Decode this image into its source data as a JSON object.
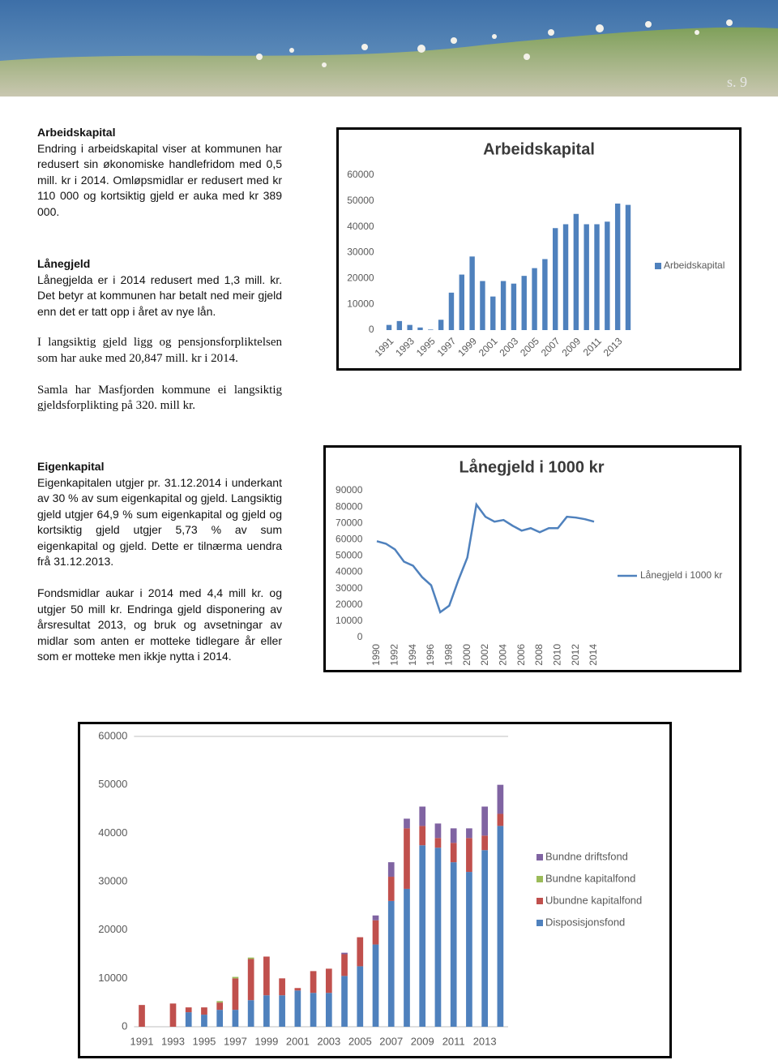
{
  "page_number": "s. 9",
  "sections": [
    {
      "heading": "Arbeidskapital",
      "paragraphs": [
        "Endring i arbeidskapital viser at kommunen har redusert sin økonomiske handlefridom med 0,5 mill. kr i 2014. Omløpsmidlar er redusert med kr 110 000 og kortsiktig gjeld er auka med kr 389 000."
      ]
    },
    {
      "heading": "Lånegjeld",
      "paragraphs": [
        "Lånegjelda er i 2014 redusert med 1,3 mill. kr. Det betyr at kommunen har betalt ned meir gjeld enn det er tatt opp i året av nye lån."
      ]
    },
    {
      "paragraphs": [
        "I langsiktig gjeld ligg og pensjonsforpliktelsen som har auke med 20,847 mill. kr i 2014.",
        "Samla har Masfjorden kommune ei langsiktig gjeldsforplikting på 320. mill kr."
      ]
    },
    {
      "heading": "Eigenkapital",
      "paragraphs": [
        "Eigenkapitalen utgjer pr. 31.12.2014 i underkant av 30 % av sum eigenkapital og gjeld. Langsiktig gjeld utgjer 64,9 % sum eigenkapital og gjeld og kortsiktig gjeld utgjer 5,73 % av sum eigenkapital og gjeld. Dette er tilnærma uendra frå 31.12.2013.",
        "Fondsmidlar aukar i 2014 med 4,4 mill kr. og utgjer 50 mill kr. Endringa gjeld disponering av årsresultat 2013, og bruk og avsetningar av midlar som anten er motteke tidlegare år eller som er motteke men ikkje nytta i 2014."
      ]
    }
  ],
  "chart_data": [
    {
      "type": "bar",
      "title": "Arbeidskapital",
      "categories": [
        "1991",
        null,
        "1993",
        null,
        "1995",
        null,
        "1997",
        null,
        "1999",
        null,
        "2001",
        null,
        "2003",
        null,
        "2005",
        null,
        "2007",
        null,
        "2009",
        null,
        "2011",
        null,
        "2013",
        null
      ],
      "series": [
        {
          "name": "Arbeidskapital",
          "color": "#4f81bd",
          "values": [
            2000,
            3500,
            2000,
            1000,
            200,
            4000,
            14500,
            21500,
            28500,
            19000,
            13000,
            19000,
            18000,
            21000,
            24000,
            27500,
            39500,
            41000,
            45000,
            41000,
            41000,
            42000,
            49000,
            48500
          ]
        }
      ],
      "ylim": [
        0,
        60000
      ],
      "yticks": [
        0,
        10000,
        20000,
        30000,
        40000,
        50000,
        60000
      ],
      "grid": false,
      "legend": "right"
    },
    {
      "type": "line",
      "title": "Lånegjeld i 1000 kr",
      "categories": [
        "1990",
        null,
        "1992",
        null,
        "1994",
        null,
        "1996",
        null,
        "1998",
        null,
        "2000",
        null,
        "2002",
        null,
        "2004",
        null,
        "2006",
        null,
        "2008",
        null,
        "2010",
        null,
        "2012",
        null,
        "2014"
      ],
      "series": [
        {
          "name": "Lånegjeld i 1000 kr",
          "color": "#4f81bd",
          "values": [
            59000,
            57500,
            54000,
            46500,
            44000,
            37000,
            32000,
            15500,
            19500,
            35000,
            49000,
            81500,
            74000,
            71000,
            72000,
            68500,
            65500,
            67000,
            64500,
            67000,
            67000,
            74000,
            73500,
            72500,
            71000
          ]
        }
      ],
      "ylim": [
        0,
        90000
      ],
      "yticks": [
        0,
        10000,
        20000,
        30000,
        40000,
        50000,
        60000,
        70000,
        80000,
        90000
      ],
      "grid": false,
      "legend": "right"
    },
    {
      "type": "stacked_bar",
      "categories": [
        "1991",
        null,
        "1993",
        null,
        "1995",
        null,
        "1997",
        null,
        "1999",
        null,
        "2001",
        null,
        "2003",
        null,
        "2005",
        null,
        "2007",
        null,
        "2009",
        null,
        "2011",
        null,
        "2013",
        null
      ],
      "series": [
        {
          "name": "Disposisjonsfond",
          "color": "#4f81bd",
          "values": [
            0,
            0,
            0,
            3000,
            2500,
            3500,
            3500,
            5500,
            6500,
            6500,
            7500,
            7000,
            7000,
            10500,
            12500,
            17000,
            26000,
            28500,
            37500,
            37000,
            34000,
            32000,
            36500,
            41500
          ]
        },
        {
          "name": "Ubundne kapitalfond",
          "color": "#c0504d",
          "values": [
            4500,
            0,
            4800,
            1000,
            1500,
            1500,
            6500,
            8500,
            8000,
            3500,
            500,
            4500,
            5000,
            4500,
            6000,
            5000,
            5000,
            12500,
            4000,
            2000,
            4000,
            7000,
            3000,
            2500
          ]
        },
        {
          "name": "Bundne kapitalfond",
          "color": "#9bbb59",
          "values": [
            0,
            0,
            0,
            0,
            0,
            300,
            300,
            300,
            0,
            0,
            0,
            0,
            0,
            0,
            0,
            0,
            0,
            0,
            0,
            0,
            0,
            0,
            0,
            0
          ]
        },
        {
          "name": "Bundne driftsfond",
          "color": "#8064a2",
          "values": [
            0,
            0,
            0,
            0,
            0,
            0,
            0,
            0,
            0,
            0,
            0,
            0,
            0,
            300,
            0,
            1000,
            3000,
            2000,
            4000,
            3000,
            3000,
            2000,
            6000,
            6000
          ]
        }
      ],
      "ylim": [
        0,
        60000
      ],
      "yticks": [
        0,
        10000,
        20000,
        30000,
        40000,
        50000,
        60000
      ],
      "grid": false,
      "legend": "right"
    }
  ]
}
